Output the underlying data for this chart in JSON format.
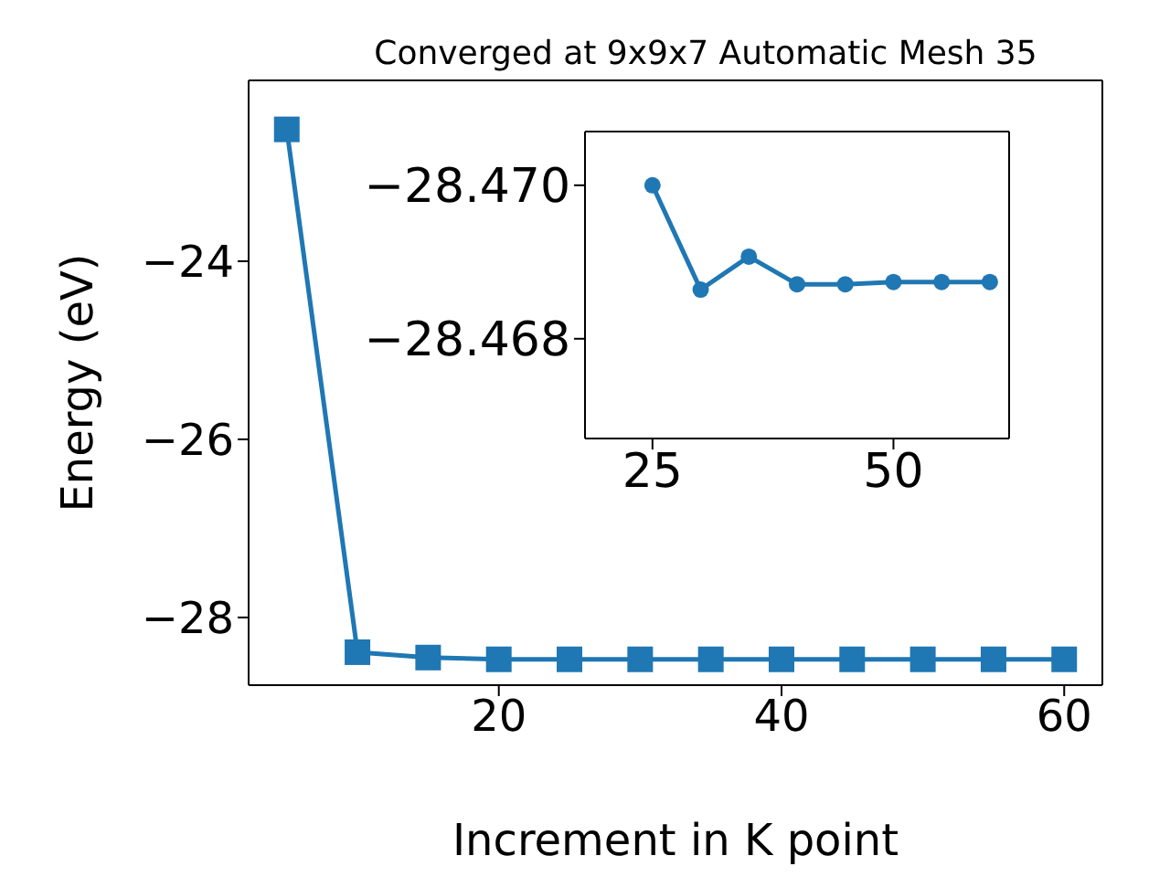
{
  "chart_data": [
    {
      "type": "line",
      "title": "Converged at 9x9x7 Automatic Mesh 35",
      "xlabel": "Increment in K point",
      "ylabel": "Energy (eV)",
      "x": [
        5,
        10,
        15,
        20,
        25,
        30,
        35,
        40,
        45,
        50,
        55,
        60
      ],
      "series": [
        {
          "color": "#1f77b4",
          "values": [
            -22.52,
            -28.39,
            -28.45,
            -28.47,
            -28.47,
            -28.47,
            -28.47,
            -28.47,
            -28.47,
            -28.47,
            -28.47,
            -28.47
          ]
        }
      ],
      "xlim": [
        2.3,
        62.7
      ],
      "xticks": [
        20,
        40,
        60
      ],
      "ylim": [
        -28.76,
        -21.97
      ],
      "yticks": [
        {
          "value": -24,
          "label": "−24"
        },
        {
          "value": -26,
          "label": "−26"
        },
        {
          "value": -28,
          "label": "−28"
        }
      ],
      "marker": "square",
      "grid": false,
      "legend": false
    },
    {
      "type": "line",
      "x": [
        25,
        30,
        35,
        40,
        45,
        50,
        55,
        60
      ],
      "series": [
        {
          "color": "#1f77b4",
          "values": [
            -28.47,
            -28.46864,
            -28.46907,
            -28.46871,
            -28.46871,
            -28.46874,
            -28.46874,
            -28.46874
          ]
        }
      ],
      "xlim": [
        18,
        62
      ],
      "xticks": [
        25,
        50
      ],
      "ylim": [
        -28.4667,
        -28.4707
      ],
      "yticks": [
        {
          "value": -28.47,
          "label": "−28.470"
        },
        {
          "value": -28.468,
          "label": "−28.468"
        }
      ],
      "marker": "circle",
      "grid": false,
      "legend": false
    }
  ]
}
